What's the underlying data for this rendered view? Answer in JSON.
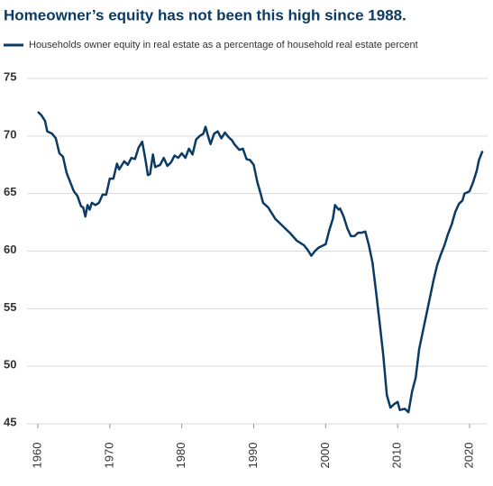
{
  "chart_data": {
    "type": "line",
    "title": "Homeowner’s equity has not been this high since 1988.",
    "series": [
      {
        "name": "Households owner equity in real estate as a percentage of household real estate percent",
        "color": "#0b3a64",
        "x": [
          1960,
          1960.5,
          1961,
          1961.3,
          1962,
          1962.5,
          1963,
          1963.5,
          1964,
          1964.5,
          1965,
          1965.5,
          1966,
          1966.3,
          1966.6,
          1966.9,
          1967.2,
          1967.5,
          1968,
          1968.5,
          1969,
          1969.5,
          1970,
          1970.5,
          1971,
          1971.3,
          1972,
          1972.5,
          1973,
          1973.5,
          1974,
          1974.5,
          1975,
          1975.3,
          1975.6,
          1976,
          1976.3,
          1977,
          1977.5,
          1978,
          1978.5,
          1979,
          1979.5,
          1980,
          1980.5,
          1981,
          1981.5,
          1982,
          1982.5,
          1983,
          1983.3,
          1983.7,
          1984,
          1984.5,
          1985,
          1985.5,
          1986,
          1986.5,
          1987,
          1987.3,
          1988,
          1988.5,
          1989,
          1989.5,
          1990,
          1990.5,
          1991,
          1991.3,
          1992,
          1993,
          1994,
          1995,
          1996,
          1997,
          1997.5,
          1998,
          1998.5,
          1999,
          2000,
          2000.5,
          2001,
          2001.3,
          2001.8,
          2002,
          2002.5,
          2003,
          2003.5,
          2004,
          2004.5,
          2005,
          2005.5,
          2006,
          2006.5,
          2007,
          2007.5,
          2008,
          2008.5,
          2009,
          2009.5,
          2010,
          2010.3,
          2011,
          2011.5,
          2012,
          2012.5,
          2013,
          2013.5,
          2014,
          2014.5,
          2015,
          2015.5,
          2016,
          2016.5,
          2017,
          2017.5,
          2018,
          2018.5,
          2019,
          2019.3,
          2020,
          2020.5,
          2021,
          2021.3,
          2021.8
        ],
        "values": [
          72.1,
          71.8,
          71.3,
          70.4,
          70.2,
          69.8,
          68.5,
          68.2,
          66.8,
          66.0,
          65.2,
          64.8,
          63.9,
          63.8,
          63.0,
          64.0,
          63.6,
          64.2,
          64.0,
          64.2,
          64.9,
          64.9,
          66.3,
          66.3,
          67.6,
          67.1,
          67.8,
          67.5,
          68.1,
          68.0,
          69.0,
          69.5,
          67.8,
          66.6,
          66.7,
          68.4,
          67.3,
          67.5,
          68.1,
          67.4,
          67.7,
          68.3,
          68.1,
          68.5,
          68.1,
          68.9,
          68.4,
          69.7,
          70.0,
          70.2,
          70.8,
          69.9,
          69.3,
          70.2,
          70.4,
          69.8,
          70.3,
          69.9,
          69.6,
          69.3,
          68.8,
          68.9,
          68.0,
          67.9,
          67.5,
          66.0,
          64.9,
          64.2,
          63.8,
          62.8,
          62.2,
          61.6,
          60.9,
          60.5,
          60.1,
          59.6,
          60.0,
          60.3,
          60.6,
          61.8,
          62.8,
          64.0,
          63.6,
          63.7,
          63.0,
          62.0,
          61.3,
          61.3,
          61.6,
          61.6,
          61.7,
          60.5,
          59.0,
          56.5,
          53.8,
          51.0,
          47.5,
          46.4,
          46.7,
          46.9,
          46.2,
          46.3,
          46.0,
          47.8,
          49.0,
          51.5,
          53.0,
          54.5,
          56.0,
          57.5,
          58.8,
          59.7,
          60.5,
          61.5,
          62.3,
          63.4,
          64.1,
          64.4,
          65.0,
          65.2,
          66.0,
          67.0,
          67.9,
          68.7
        ]
      }
    ],
    "xlim": [
      1958.5,
      2022.5
    ],
    "xticks": [
      1960,
      1970,
      1980,
      1990,
      2000,
      2010,
      2020
    ],
    "ylim": [
      45,
      75
    ],
    "yticks": [
      45,
      50,
      55,
      60,
      65,
      70,
      75
    ],
    "grid": true
  }
}
